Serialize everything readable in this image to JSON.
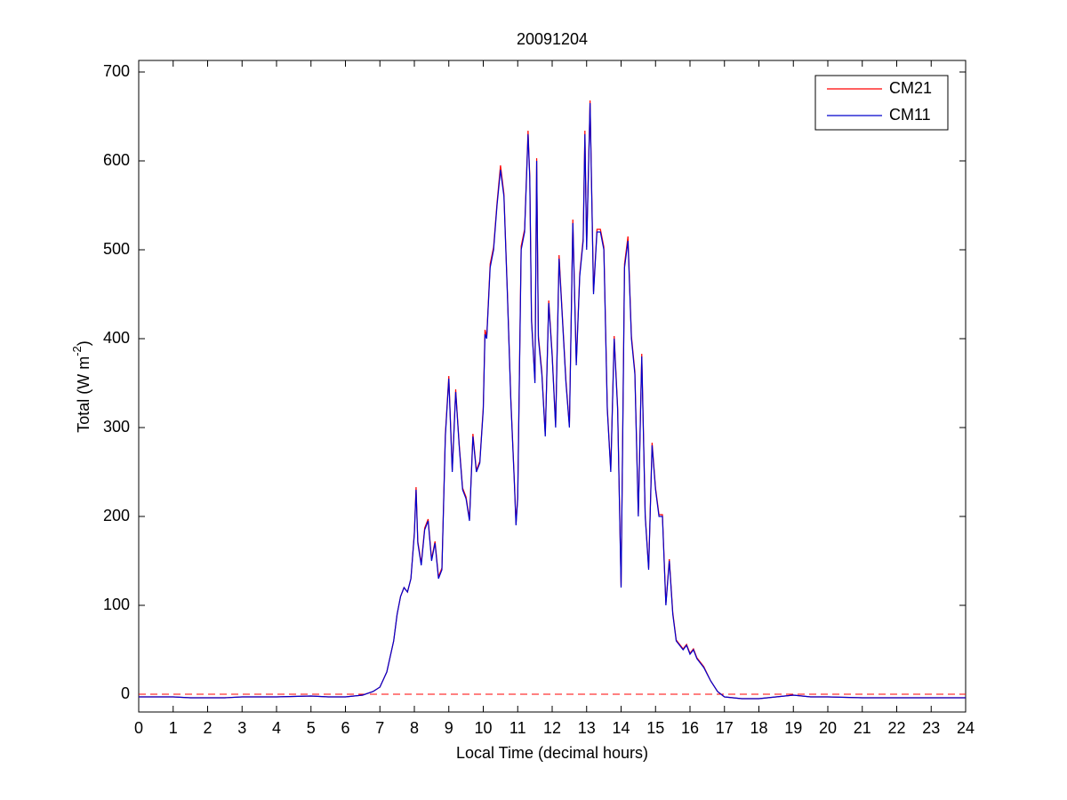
{
  "chart_data": {
    "type": "line",
    "title": "20091204",
    "xlabel": "Local Time (decimal hours)",
    "ylabel": {
      "text": "Total (W m",
      "superscript": "-2",
      "suffix": ")"
    },
    "x": [
      0,
      1,
      1.5,
      2,
      2.5,
      3,
      4,
      5,
      5.5,
      6,
      6.5,
      6.8,
      7,
      7.2,
      7.4,
      7.5,
      7.6,
      7.7,
      7.8,
      7.9,
      8.0,
      8.05,
      8.1,
      8.2,
      8.3,
      8.4,
      8.5,
      8.6,
      8.7,
      8.8,
      8.9,
      9.0,
      9.1,
      9.2,
      9.3,
      9.4,
      9.5,
      9.6,
      9.7,
      9.8,
      9.9,
      10.0,
      10.05,
      10.1,
      10.2,
      10.3,
      10.4,
      10.5,
      10.6,
      10.7,
      10.8,
      10.9,
      10.95,
      11.0,
      11.1,
      11.2,
      11.3,
      11.35,
      11.4,
      11.5,
      11.55,
      11.6,
      11.7,
      11.8,
      11.9,
      12.0,
      12.1,
      12.2,
      12.3,
      12.4,
      12.5,
      12.6,
      12.7,
      12.8,
      12.9,
      12.95,
      13.0,
      13.1,
      13.2,
      13.3,
      13.4,
      13.5,
      13.6,
      13.7,
      13.8,
      13.9,
      14.0,
      14.1,
      14.2,
      14.3,
      14.4,
      14.5,
      14.6,
      14.7,
      14.8,
      14.9,
      15.0,
      15.1,
      15.2,
      15.3,
      15.4,
      15.5,
      15.6,
      15.7,
      15.8,
      15.9,
      16.0,
      16.1,
      16.2,
      16.4,
      16.6,
      16.8,
      17.0,
      17.5,
      18,
      18.5,
      19,
      19.5,
      20,
      21,
      22,
      23,
      24
    ],
    "series": [
      {
        "name": "CM21",
        "color": "#ff0000",
        "values": [
          -3,
          -3,
          -4,
          -4,
          -4,
          -3,
          -3,
          -2,
          -3,
          -3,
          -1,
          3,
          8,
          25,
          60,
          90,
          110,
          120,
          115,
          130,
          182,
          233,
          172,
          147,
          187,
          197,
          152,
          172,
          132,
          142,
          293,
          358,
          252,
          343,
          282,
          232,
          222,
          197,
          293,
          252,
          262,
          323,
          410,
          402,
          484,
          503,
          553,
          595,
          563,
          453,
          333,
          242,
          192,
          223,
          504,
          523,
          634,
          583,
          423,
          353,
          603,
          403,
          363,
          292,
          443,
          383,
          302,
          494,
          423,
          353,
          302,
          534,
          373,
          473,
          513,
          634,
          503,
          668,
          453,
          523,
          523,
          503,
          323,
          252,
          403,
          323,
          122,
          484,
          515,
          403,
          363,
          202,
          383,
          202,
          142,
          283,
          232,
          202,
          202,
          102,
          152,
          92,
          61,
          56,
          51,
          56,
          46,
          51,
          41,
          31,
          15,
          3,
          -3,
          -5,
          -5,
          -3,
          -1,
          -3,
          -3,
          -4,
          -4,
          -4,
          -4
        ]
      },
      {
        "name": "CM11",
        "color": "#0000cc",
        "values": [
          -3,
          -3,
          -4,
          -4,
          -4,
          -3,
          -3,
          -2,
          -3,
          -3,
          -1,
          3,
          8,
          25,
          60,
          90,
          110,
          120,
          115,
          130,
          180,
          230,
          170,
          145,
          185,
          195,
          150,
          170,
          130,
          140,
          290,
          355,
          250,
          340,
          280,
          230,
          220,
          195,
          290,
          250,
          260,
          320,
          405,
          400,
          480,
          500,
          550,
          590,
          560,
          450,
          330,
          240,
          190,
          220,
          500,
          520,
          630,
          580,
          420,
          350,
          600,
          400,
          360,
          290,
          440,
          380,
          300,
          490,
          420,
          350,
          300,
          530,
          370,
          470,
          510,
          630,
          500,
          665,
          450,
          520,
          520,
          500,
          320,
          250,
          400,
          320,
          120,
          480,
          510,
          400,
          360,
          200,
          380,
          200,
          140,
          280,
          230,
          200,
          200,
          100,
          150,
          90,
          60,
          55,
          50,
          55,
          45,
          50,
          40,
          30,
          15,
          3,
          -3,
          -5,
          -5,
          -3,
          -1,
          -3,
          -3,
          -4,
          -4,
          -4,
          -4
        ]
      }
    ],
    "reference_line": {
      "value": 0,
      "color": "#ff0000",
      "style": "dashed"
    },
    "xlim": [
      0,
      24
    ],
    "xticks": [
      0,
      1,
      2,
      3,
      4,
      5,
      6,
      7,
      8,
      9,
      10,
      11,
      12,
      13,
      14,
      15,
      16,
      17,
      18,
      19,
      20,
      21,
      22,
      23,
      24
    ],
    "ylim": [
      -20,
      713
    ],
    "yticks": [
      0,
      100,
      200,
      300,
      400,
      500,
      600,
      700
    ],
    "grid": false,
    "legend": "northeast"
  }
}
